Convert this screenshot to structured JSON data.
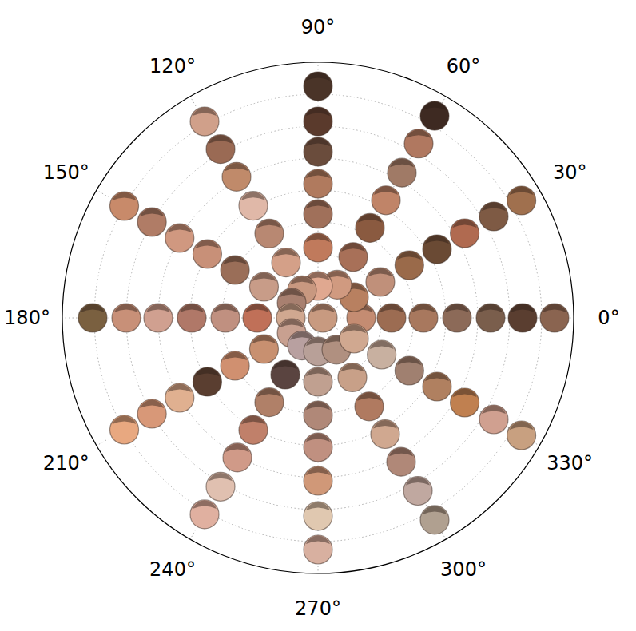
{
  "chart_data": {
    "type": "polar_scatter",
    "x": [
      0,
      0,
      0,
      0,
      0,
      0,
      0,
      30,
      30,
      30,
      30,
      30,
      30,
      30,
      60,
      60,
      60,
      60,
      60,
      60,
      60,
      90,
      90,
      90,
      90,
      90,
      90,
      90,
      120,
      120,
      120,
      120,
      120,
      120,
      120,
      150,
      150,
      150,
      150,
      150,
      150,
      150,
      180,
      180,
      180,
      180,
      180,
      180,
      180,
      210,
      210,
      210,
      210,
      210,
      210,
      210,
      240,
      240,
      240,
      240,
      240,
      240,
      240,
      270,
      270,
      270,
      270,
      270,
      270,
      270,
      300,
      300,
      300,
      300,
      300,
      300,
      300,
      330,
      330,
      330,
      330,
      330,
      330,
      330,
      0
    ],
    "values": [
      7.4,
      6.4,
      5.4,
      4.35,
      3.3,
      2.3,
      1.35,
      7.35,
      6.35,
      5.3,
      4.3,
      3.3,
      2.25,
      1.3,
      7.3,
      6.3,
      5.25,
      4.25,
      3.25,
      2.2,
      1.2,
      7.25,
      6.15,
      5.2,
      4.2,
      3.25,
      2.2,
      1.0,
      7.1,
      6.1,
      5.1,
      4.05,
      3.05,
      2.0,
      1.0,
      7.0,
      6.0,
      5.0,
      4.0,
      3.0,
      1.95,
      0.95,
      7.05,
      6.0,
      5.0,
      3.95,
      2.9,
      1.9,
      0.85,
      7.0,
      6.0,
      5.0,
      4.0,
      3.0,
      1.95,
      0.95,
      7.1,
      6.1,
      5.05,
      4.05,
      3.05,
      2.05,
      1.0,
      7.25,
      6.2,
      5.1,
      4.05,
      3.05,
      2.0,
      1.05,
      7.3,
      6.25,
      5.2,
      4.2,
      3.2,
      2.15,
      1.15,
      7.35,
      6.35,
      5.3,
      4.3,
      3.3,
      2.3,
      1.3,
      0.15
    ],
    "colors": [
      "#8a6450",
      "#5a3e30",
      "#7a5e4c",
      "#8c6a58",
      "#a8785e",
      "#9c6c52",
      "#c48c72",
      "#a0704e",
      "#7e5a44",
      "#b06a50",
      "#6a4a34",
      "#9a6a4a",
      "#c0907a",
      "#b88060",
      "#3e2a22",
      "#b07860",
      "#a07a66",
      "#c08468",
      "#8a5a40",
      "#a87058",
      "#d09a80",
      "#4a3428",
      "#5a3a2c",
      "#6a4c3c",
      "#b07a5e",
      "#a0705a",
      "#c07a5c",
      "#e0a890",
      "#d0a08a",
      "#9a6a54",
      "#c08a6a",
      "#e0b8a8",
      "#b88872",
      "#d4a088",
      "#c89880",
      "#c88a6a",
      "#b07c66",
      "#d09880",
      "#c89078",
      "#9a6e58",
      "#c89c88",
      "#a88070",
      "#7a6040",
      "#c89078",
      "#d0a090",
      "#b07868",
      "#c09080",
      "#c07058",
      "#d0a890",
      "#e8a880",
      "#d89878",
      "#e0b090",
      "#5a3e30",
      "#d09070",
      "#c89070",
      "#c8a090",
      "#e0b0a0",
      "#e0c0b0",
      "#d09a88",
      "#c0806a",
      "#b08068",
      "#5a4440",
      "#b8a0a0",
      "#d8b0a0",
      "#e0c8b0",
      "#d09878",
      "#c09080",
      "#b08878",
      "#c0a090",
      "#b8a098",
      "#b0a090",
      "#c0a8a0",
      "#b08878",
      "#d0a890",
      "#b07a60",
      "#c8a088",
      "#b09080",
      "#c8a080",
      "#d0a090",
      "#c08050",
      "#b08060",
      "#a08070",
      "#c8b0a0",
      "#d0a890",
      "#c89a80"
    ],
    "xlim": [
      0,
      360
    ],
    "xticks": [
      {
        "value": 0,
        "label": "0°"
      },
      {
        "value": 30,
        "label": "30°"
      },
      {
        "value": 60,
        "label": "60°"
      },
      {
        "value": 90,
        "label": "90°"
      },
      {
        "value": 120,
        "label": "120°"
      },
      {
        "value": 150,
        "label": "150°"
      },
      {
        "value": 180,
        "label": "180°"
      },
      {
        "value": 210,
        "label": "210°"
      },
      {
        "value": 240,
        "label": "240°"
      },
      {
        "value": 270,
        "label": "270°"
      },
      {
        "value": 300,
        "label": "300°"
      },
      {
        "value": 330,
        "label": "330°"
      }
    ],
    "ylim": [
      0,
      8
    ],
    "yticks": [
      1,
      2,
      3,
      4,
      5,
      6,
      7
    ],
    "grid": true,
    "tick_labels": "x",
    "marker": "circle"
  }
}
